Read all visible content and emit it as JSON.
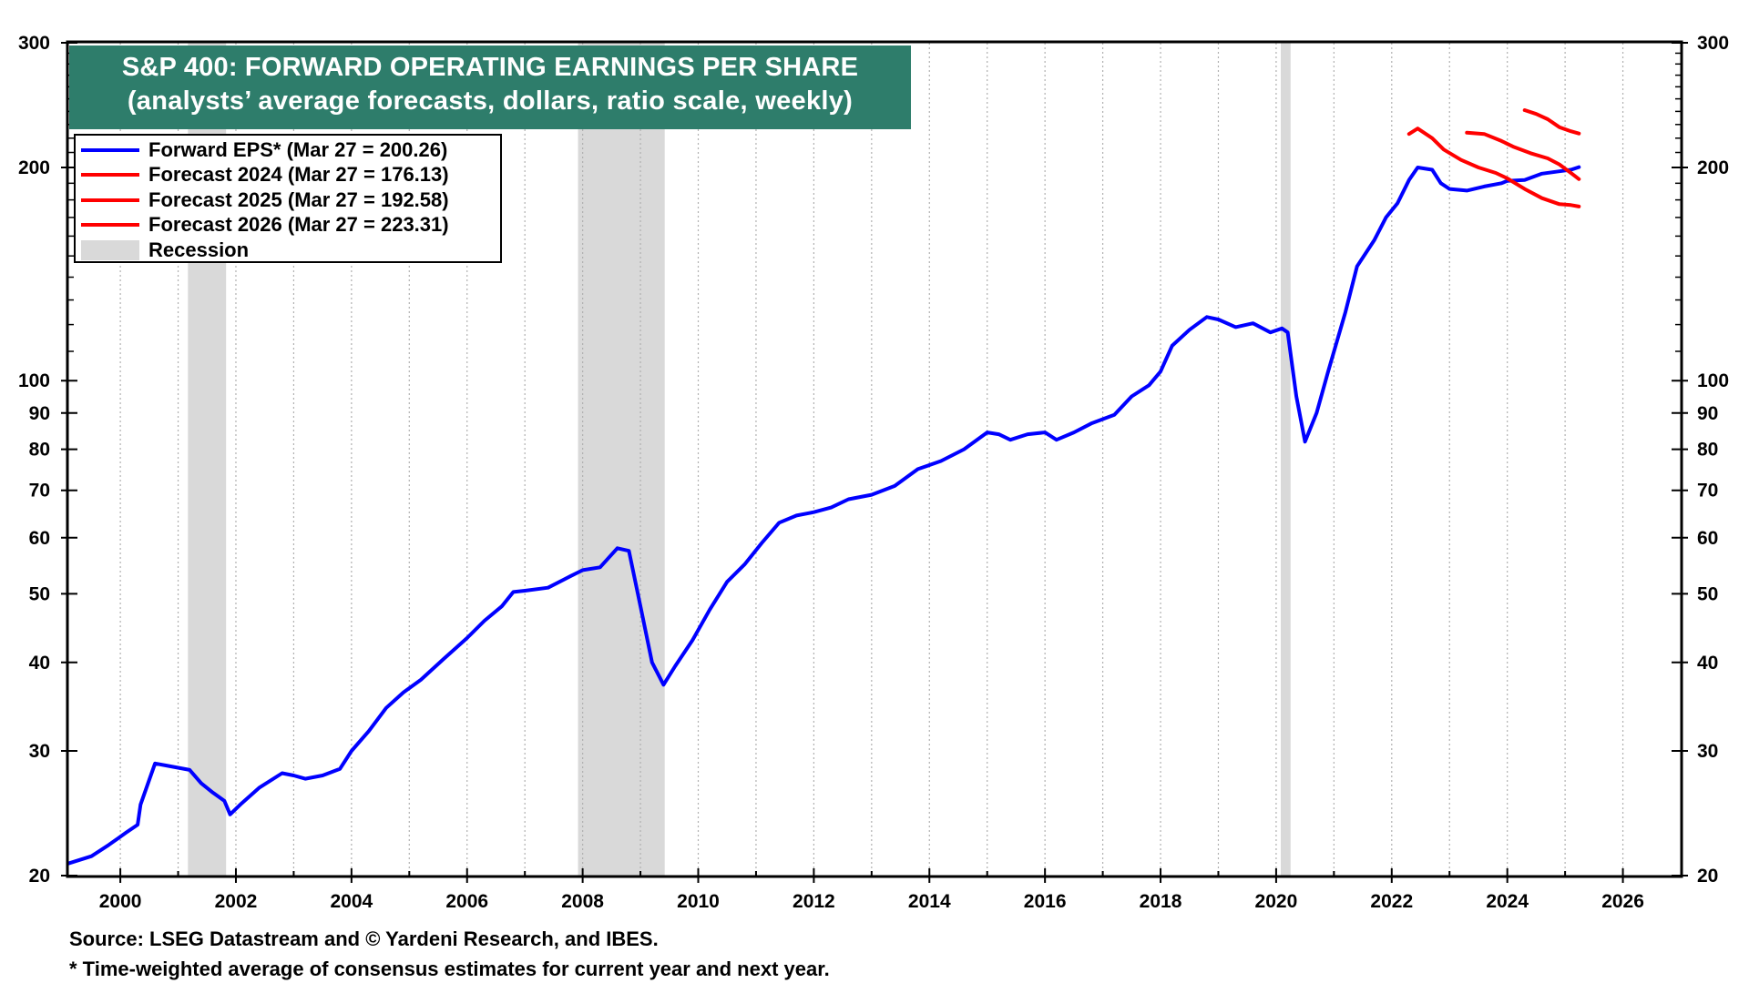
{
  "chart_data": {
    "type": "line",
    "title": "S&P 400: FORWARD OPERATING EARNINGS PER SHARE",
    "subtitle": "(analysts’ average forecasts, dollars, ratio scale, weekly)",
    "y_scale": "log",
    "ylim": [
      20,
      300
    ],
    "xlim": [
      1999.1,
      2027.0
    ],
    "y_ticks": [
      "20",
      "30",
      "40",
      "50",
      "60",
      "70",
      "80",
      "90",
      "100",
      "200",
      "300"
    ],
    "x_ticks": [
      "2000",
      "2002",
      "2004",
      "2006",
      "2008",
      "2010",
      "2012",
      "2014",
      "2016",
      "2018",
      "2020",
      "2022",
      "2024",
      "2026"
    ],
    "grid": "dotted vertical lines at each year",
    "legend_position": "top-left",
    "recessions": [
      [
        2001.17,
        2001.83
      ],
      [
        2007.92,
        2009.42
      ],
      [
        2020.08,
        2020.25
      ]
    ],
    "series": [
      {
        "name": "Forward EPS* (Mar 27 = 200.26)",
        "color": "#0000ff",
        "points": [
          [
            1999.1,
            20.8
          ],
          [
            1999.5,
            21.3
          ],
          [
            1999.8,
            22.1
          ],
          [
            2000.1,
            23.0
          ],
          [
            2000.3,
            23.6
          ],
          [
            2000.35,
            25.2
          ],
          [
            2000.5,
            27.3
          ],
          [
            2000.6,
            28.8
          ],
          [
            2000.8,
            28.6
          ],
          [
            2001.0,
            28.4
          ],
          [
            2001.2,
            28.2
          ],
          [
            2001.4,
            27.0
          ],
          [
            2001.6,
            26.2
          ],
          [
            2001.8,
            25.5
          ],
          [
            2001.9,
            24.4
          ],
          [
            2002.1,
            25.3
          ],
          [
            2002.4,
            26.6
          ],
          [
            2002.8,
            27.9
          ],
          [
            2003.0,
            27.7
          ],
          [
            2003.2,
            27.4
          ],
          [
            2003.5,
            27.7
          ],
          [
            2003.8,
            28.3
          ],
          [
            2004.0,
            30.0
          ],
          [
            2004.3,
            32.0
          ],
          [
            2004.6,
            34.5
          ],
          [
            2004.9,
            36.3
          ],
          [
            2005.2,
            37.8
          ],
          [
            2005.6,
            40.5
          ],
          [
            2006.0,
            43.3
          ],
          [
            2006.3,
            45.8
          ],
          [
            2006.6,
            48.0
          ],
          [
            2006.8,
            50.3
          ],
          [
            2007.0,
            50.5
          ],
          [
            2007.4,
            51.0
          ],
          [
            2007.8,
            53.0
          ],
          [
            2008.0,
            54.0
          ],
          [
            2008.3,
            54.5
          ],
          [
            2008.6,
            58.0
          ],
          [
            2008.8,
            57.5
          ],
          [
            2009.0,
            48.0
          ],
          [
            2009.2,
            40.0
          ],
          [
            2009.4,
            37.2
          ],
          [
            2009.6,
            39.5
          ],
          [
            2009.9,
            43.0
          ],
          [
            2010.2,
            47.5
          ],
          [
            2010.5,
            52.0
          ],
          [
            2010.8,
            55.0
          ],
          [
            2011.1,
            59.0
          ],
          [
            2011.4,
            63.0
          ],
          [
            2011.7,
            64.5
          ],
          [
            2012.0,
            65.2
          ],
          [
            2012.3,
            66.2
          ],
          [
            2012.6,
            68.0
          ],
          [
            2013.0,
            69.0
          ],
          [
            2013.4,
            71.0
          ],
          [
            2013.8,
            75.0
          ],
          [
            2014.2,
            77.0
          ],
          [
            2014.6,
            80.0
          ],
          [
            2015.0,
            84.5
          ],
          [
            2015.2,
            84.0
          ],
          [
            2015.4,
            82.5
          ],
          [
            2015.7,
            84.0
          ],
          [
            2016.0,
            84.5
          ],
          [
            2016.2,
            82.5
          ],
          [
            2016.5,
            84.5
          ],
          [
            2016.8,
            87.0
          ],
          [
            2017.2,
            89.5
          ],
          [
            2017.5,
            95.0
          ],
          [
            2017.8,
            98.5
          ],
          [
            2018.0,
            103.0
          ],
          [
            2018.2,
            112.0
          ],
          [
            2018.5,
            118.0
          ],
          [
            2018.8,
            123.0
          ],
          [
            2019.0,
            122.0
          ],
          [
            2019.3,
            119.0
          ],
          [
            2019.6,
            120.5
          ],
          [
            2019.9,
            117.0
          ],
          [
            2020.1,
            118.5
          ],
          [
            2020.2,
            117.0
          ],
          [
            2020.35,
            95.0
          ],
          [
            2020.5,
            82.0
          ],
          [
            2020.7,
            90.0
          ],
          [
            2020.9,
            103.0
          ],
          [
            2021.2,
            125.0
          ],
          [
            2021.4,
            145.0
          ],
          [
            2021.7,
            158.0
          ],
          [
            2021.9,
            170.0
          ],
          [
            2022.1,
            178.0
          ],
          [
            2022.3,
            192.0
          ],
          [
            2022.45,
            200.0
          ],
          [
            2022.7,
            198.5
          ],
          [
            2022.85,
            190.0
          ],
          [
            2023.0,
            186.5
          ],
          [
            2023.3,
            185.5
          ],
          [
            2023.6,
            188.0
          ],
          [
            2023.9,
            190.0
          ],
          [
            2024.0,
            191.5
          ],
          [
            2024.3,
            192.0
          ],
          [
            2024.6,
            196.0
          ],
          [
            2024.9,
            197.5
          ],
          [
            2025.1,
            198.5
          ],
          [
            2025.24,
            200.26
          ]
        ]
      },
      {
        "name": "Forecast 2024 (Mar 27 = 176.13)",
        "color": "#ff0000",
        "points": [
          [
            2022.3,
            223.0
          ],
          [
            2022.45,
            227.0
          ],
          [
            2022.7,
            220.0
          ],
          [
            2022.9,
            212.0
          ],
          [
            2023.2,
            205.0
          ],
          [
            2023.5,
            200.0
          ],
          [
            2023.8,
            196.5
          ],
          [
            2024.0,
            193.0
          ],
          [
            2024.3,
            186.5
          ],
          [
            2024.6,
            181.0
          ],
          [
            2024.9,
            177.5
          ],
          [
            2025.1,
            177.0
          ],
          [
            2025.24,
            176.13
          ]
        ]
      },
      {
        "name": "Forecast 2025 (Mar 27 = 192.58)",
        "color": "#ff0000",
        "points": [
          [
            2023.3,
            224.0
          ],
          [
            2023.6,
            223.0
          ],
          [
            2023.9,
            218.0
          ],
          [
            2024.1,
            214.0
          ],
          [
            2024.4,
            209.5
          ],
          [
            2024.7,
            206.0
          ],
          [
            2024.9,
            202.0
          ],
          [
            2025.1,
            196.5
          ],
          [
            2025.24,
            192.58
          ]
        ]
      },
      {
        "name": "Forecast 2026 (Mar 27 = 223.31)",
        "color": "#ff0000",
        "points": [
          [
            2024.3,
            241.0
          ],
          [
            2024.5,
            238.0
          ],
          [
            2024.7,
            234.0
          ],
          [
            2024.9,
            228.0
          ],
          [
            2025.1,
            225.0
          ],
          [
            2025.24,
            223.31
          ]
        ]
      }
    ]
  },
  "title": {
    "line1": "S&P 400: FORWARD OPERATING EARNINGS PER SHARE",
    "line2": "(analysts’ average forecasts, dollars, ratio scale, weekly)"
  },
  "legend": {
    "forward_eps": "Forward EPS* (Mar 27 = 200.26)",
    "forecast_2024": "Forecast 2024 (Mar 27 = 176.13)",
    "forecast_2025": "Forecast 2025 (Mar 27 = 192.58)",
    "forecast_2026": "Forecast 2026 (Mar 27 = 223.31)",
    "recession": "Recession"
  },
  "footer": {
    "source": "Source: LSEG Datastream and © Yardeni Research, and IBES.",
    "note": "* Time-weighted average of consensus estimates for current year and next year."
  },
  "colors": {
    "title_bg": "#2e7d6b",
    "forward_eps": "#0000ff",
    "forecast": "#ff0000",
    "recession": "#d9d9d9"
  }
}
